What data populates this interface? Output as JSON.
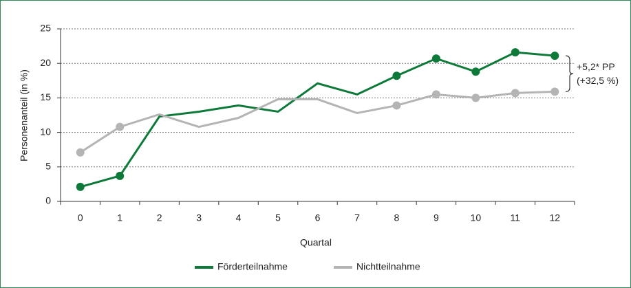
{
  "chart_data": {
    "type": "line",
    "x_label": "Quartal",
    "y_label": "Personenanteil (in %)",
    "categories": [
      "0",
      "1",
      "2",
      "3",
      "4",
      "5",
      "6",
      "7",
      "8",
      "9",
      "10",
      "11",
      "12"
    ],
    "series": [
      {
        "name": "Förderteilnahme",
        "color": "#0e7a3a",
        "marker_indices": [
          0,
          1,
          8,
          9,
          10,
          11,
          12
        ],
        "values": [
          2.1,
          3.7,
          12.3,
          13.0,
          13.9,
          13.0,
          17.1,
          15.5,
          18.2,
          20.7,
          18.8,
          21.6,
          21.1
        ]
      },
      {
        "name": "Nichtteilnahme",
        "color": "#b4b4b4",
        "marker_indices": [
          0,
          1,
          8,
          9,
          10,
          11,
          12
        ],
        "values": [
          7.1,
          10.8,
          12.6,
          10.8,
          12.1,
          14.8,
          14.8,
          12.8,
          13.9,
          15.5,
          15.0,
          15.7,
          15.9
        ]
      }
    ],
    "ylim": [
      0,
      25
    ],
    "yticks": [
      0,
      5,
      10,
      15,
      20,
      25
    ],
    "grid": true,
    "legend": "bottom",
    "annotations": [
      "+5,2* PP",
      "(+32,5 %)"
    ]
  }
}
